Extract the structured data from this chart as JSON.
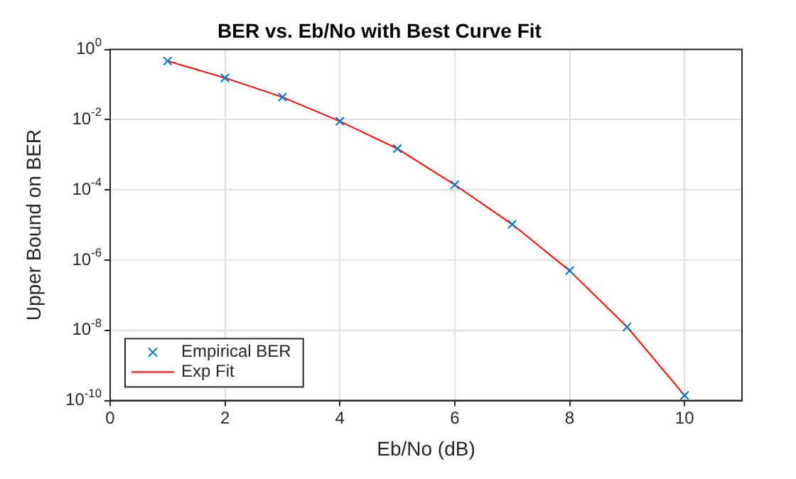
{
  "chart_data": {
    "type": "scatter",
    "title": "BER vs. Eb/No with Best Curve Fit",
    "xlabel": "Eb/No (dB)",
    "ylabel": "Upper Bound on BER",
    "log": "y",
    "xlim": [
      0,
      11
    ],
    "xticks": [
      0,
      2,
      4,
      6,
      8,
      10
    ],
    "ylim": [
      1e-10,
      1
    ],
    "yticks": [
      {
        "value": 1e-10,
        "label": "10$^{-10}$"
      },
      {
        "value": 1e-08,
        "label": "10$^{-8}$"
      },
      {
        "value": 1e-06,
        "label": "10$^{-6}$"
      },
      {
        "value": 0.0001,
        "label": "10$^{-4}$"
      },
      {
        "value": 0.01,
        "label": "10$^{-2}$"
      },
      {
        "value": 1,
        "label": "10$^{0}$"
      }
    ],
    "grid": true,
    "legend": "bottom left",
    "series": [
      {
        "name": "Empirical BER",
        "color": "#0072bd",
        "marker": "cross",
        "x": [
          1,
          2,
          3,
          4,
          5,
          6,
          7,
          8,
          9,
          10
        ],
        "values": [
          0.47,
          0.155,
          0.044,
          0.009,
          0.0015,
          0.00014,
          1.05e-05,
          5e-07,
          1.25e-08,
          1.4e-10
        ]
      },
      {
        "name": "Exp Fit",
        "type": "line",
        "color": "#ff0000",
        "marker": "none",
        "line_style": "solid",
        "x": [
          1,
          2,
          3,
          4,
          5,
          6,
          7,
          8,
          9,
          10
        ],
        "values": [
          0.47,
          0.155,
          0.044,
          0.009,
          0.0015,
          0.00014,
          1.05e-05,
          5e-07,
          1.25e-08,
          1.4e-10
        ]
      }
    ]
  }
}
